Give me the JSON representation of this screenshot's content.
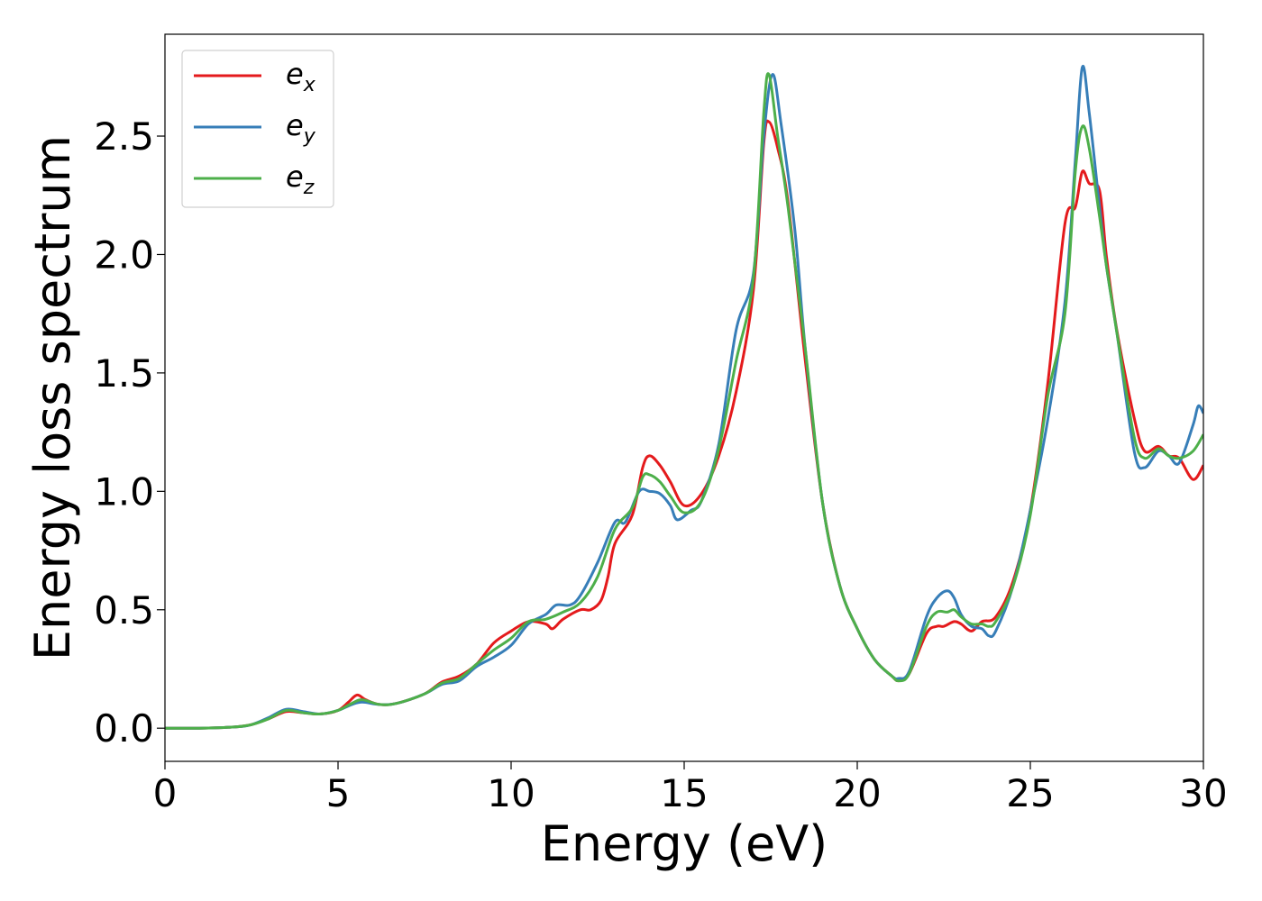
{
  "chart_data": {
    "type": "line",
    "title": "",
    "xlabel": "Energy (eV)",
    "ylabel": "Energy loss spectrum",
    "xlim": [
      0,
      30
    ],
    "ylim": [
      -0.14,
      2.93
    ],
    "xticks": [
      0,
      5,
      10,
      15,
      20,
      25,
      30
    ],
    "xtick_labels": [
      "0",
      "5",
      "10",
      "15",
      "20",
      "25",
      "30"
    ],
    "yticks": [
      0.0,
      0.5,
      1.0,
      1.5,
      2.0,
      2.5
    ],
    "ytick_labels": [
      "0.0",
      "0.5",
      "1.0",
      "1.5",
      "2.0",
      "2.5"
    ],
    "grid": false,
    "legend_position": "top-left",
    "series": [
      {
        "name": "e",
        "subscript": "x",
        "color": "#e41a1c",
        "points": [
          [
            0,
            0
          ],
          [
            1,
            0
          ],
          [
            2,
            0.005
          ],
          [
            2.5,
            0.015
          ],
          [
            3,
            0.04
          ],
          [
            3.5,
            0.07
          ],
          [
            4,
            0.065
          ],
          [
            4.5,
            0.06
          ],
          [
            5,
            0.075
          ],
          [
            5.3,
            0.11
          ],
          [
            5.55,
            0.14
          ],
          [
            5.8,
            0.12
          ],
          [
            6.2,
            0.1
          ],
          [
            6.7,
            0.105
          ],
          [
            7.5,
            0.145
          ],
          [
            8,
            0.195
          ],
          [
            8.5,
            0.22
          ],
          [
            9,
            0.27
          ],
          [
            9.5,
            0.36
          ],
          [
            10,
            0.41
          ],
          [
            10.5,
            0.45
          ],
          [
            11,
            0.44
          ],
          [
            11.2,
            0.42
          ],
          [
            11.5,
            0.46
          ],
          [
            12,
            0.5
          ],
          [
            12.3,
            0.5
          ],
          [
            12.6,
            0.54
          ],
          [
            12.8,
            0.64
          ],
          [
            13,
            0.78
          ],
          [
            13.5,
            0.9
          ],
          [
            13.8,
            1.1
          ],
          [
            14,
            1.15
          ],
          [
            14.3,
            1.11
          ],
          [
            14.6,
            1.04
          ],
          [
            15,
            0.94
          ],
          [
            15.5,
            0.99
          ],
          [
            16,
            1.15
          ],
          [
            16.5,
            1.42
          ],
          [
            17,
            1.85
          ],
          [
            17.3,
            2.47
          ],
          [
            17.45,
            2.56
          ],
          [
            17.7,
            2.45
          ],
          [
            18,
            2.22
          ],
          [
            18.5,
            1.55
          ],
          [
            19,
            0.95
          ],
          [
            19.5,
            0.6
          ],
          [
            20,
            0.42
          ],
          [
            20.5,
            0.29
          ],
          [
            21,
            0.22
          ],
          [
            21.2,
            0.2
          ],
          [
            21.5,
            0.23
          ],
          [
            22,
            0.4
          ],
          [
            22.3,
            0.43
          ],
          [
            22.5,
            0.43
          ],
          [
            22.8,
            0.45
          ],
          [
            23,
            0.44
          ],
          [
            23.3,
            0.41
          ],
          [
            23.6,
            0.45
          ],
          [
            24,
            0.47
          ],
          [
            24.5,
            0.62
          ],
          [
            25,
            0.92
          ],
          [
            25.5,
            1.45
          ],
          [
            26,
            2.13
          ],
          [
            26.3,
            2.2
          ],
          [
            26.5,
            2.35
          ],
          [
            26.7,
            2.3
          ],
          [
            27,
            2.27
          ],
          [
            27.2,
            1.99
          ],
          [
            27.5,
            1.68
          ],
          [
            28,
            1.31
          ],
          [
            28.3,
            1.17
          ],
          [
            28.7,
            1.19
          ],
          [
            29,
            1.15
          ],
          [
            29.3,
            1.14
          ],
          [
            29.7,
            1.05
          ],
          [
            30,
            1.11
          ]
        ]
      },
      {
        "name": "e",
        "subscript": "y",
        "color": "#377eb8",
        "points": [
          [
            0,
            0
          ],
          [
            1,
            0
          ],
          [
            2,
            0.005
          ],
          [
            2.5,
            0.015
          ],
          [
            3,
            0.045
          ],
          [
            3.5,
            0.08
          ],
          [
            4,
            0.07
          ],
          [
            4.5,
            0.06
          ],
          [
            5,
            0.075
          ],
          [
            5.4,
            0.1
          ],
          [
            5.7,
            0.11
          ],
          [
            6.2,
            0.1
          ],
          [
            6.7,
            0.105
          ],
          [
            7.5,
            0.145
          ],
          [
            8,
            0.185
          ],
          [
            8.5,
            0.2
          ],
          [
            9,
            0.26
          ],
          [
            9.5,
            0.3
          ],
          [
            10,
            0.35
          ],
          [
            10.5,
            0.44
          ],
          [
            11,
            0.48
          ],
          [
            11.3,
            0.52
          ],
          [
            11.7,
            0.52
          ],
          [
            12,
            0.56
          ],
          [
            12.5,
            0.7
          ],
          [
            13,
            0.87
          ],
          [
            13.3,
            0.87
          ],
          [
            13.7,
            1.0
          ],
          [
            14,
            1.0
          ],
          [
            14.3,
            0.99
          ],
          [
            14.6,
            0.94
          ],
          [
            14.8,
            0.88
          ],
          [
            15.2,
            0.92
          ],
          [
            15.5,
            0.96
          ],
          [
            16,
            1.2
          ],
          [
            16.5,
            1.68
          ],
          [
            17,
            1.92
          ],
          [
            17.3,
            2.5
          ],
          [
            17.55,
            2.76
          ],
          [
            17.8,
            2.55
          ],
          [
            18.2,
            2.1
          ],
          [
            18.5,
            1.6
          ],
          [
            19,
            0.95
          ],
          [
            19.5,
            0.6
          ],
          [
            20,
            0.42
          ],
          [
            20.5,
            0.29
          ],
          [
            21,
            0.22
          ],
          [
            21.2,
            0.21
          ],
          [
            21.5,
            0.24
          ],
          [
            22,
            0.47
          ],
          [
            22.3,
            0.55
          ],
          [
            22.6,
            0.58
          ],
          [
            22.8,
            0.55
          ],
          [
            23,
            0.48
          ],
          [
            23.3,
            0.43
          ],
          [
            23.6,
            0.42
          ],
          [
            23.8,
            0.39
          ],
          [
            24,
            0.41
          ],
          [
            24.5,
            0.6
          ],
          [
            25,
            0.92
          ],
          [
            25.5,
            1.3
          ],
          [
            26,
            1.8
          ],
          [
            26.3,
            2.4
          ],
          [
            26.5,
            2.79
          ],
          [
            26.7,
            2.6
          ],
          [
            27,
            2.2
          ],
          [
            27.2,
            1.95
          ],
          [
            27.5,
            1.67
          ],
          [
            28,
            1.17
          ],
          [
            28.3,
            1.1
          ],
          [
            28.7,
            1.17
          ],
          [
            29,
            1.15
          ],
          [
            29.3,
            1.12
          ],
          [
            29.7,
            1.28
          ],
          [
            29.85,
            1.36
          ],
          [
            30,
            1.33
          ]
        ]
      },
      {
        "name": "e",
        "subscript": "z",
        "color": "#4daf4a",
        "points": [
          [
            0,
            0
          ],
          [
            1,
            0
          ],
          [
            2,
            0.005
          ],
          [
            2.5,
            0.015
          ],
          [
            3,
            0.04
          ],
          [
            3.5,
            0.075
          ],
          [
            4,
            0.065
          ],
          [
            4.5,
            0.06
          ],
          [
            5,
            0.075
          ],
          [
            5.4,
            0.105
          ],
          [
            5.7,
            0.12
          ],
          [
            6.2,
            0.1
          ],
          [
            6.7,
            0.105
          ],
          [
            7.5,
            0.145
          ],
          [
            8,
            0.19
          ],
          [
            8.5,
            0.21
          ],
          [
            9,
            0.27
          ],
          [
            9.5,
            0.33
          ],
          [
            10,
            0.38
          ],
          [
            10.5,
            0.45
          ],
          [
            11,
            0.46
          ],
          [
            11.5,
            0.49
          ],
          [
            12,
            0.53
          ],
          [
            12.5,
            0.64
          ],
          [
            13,
            0.84
          ],
          [
            13.5,
            0.93
          ],
          [
            13.8,
            1.06
          ],
          [
            14,
            1.07
          ],
          [
            14.3,
            1.04
          ],
          [
            14.6,
            0.98
          ],
          [
            15,
            0.91
          ],
          [
            15.5,
            0.96
          ],
          [
            16,
            1.18
          ],
          [
            16.5,
            1.55
          ],
          [
            17,
            1.9
          ],
          [
            17.3,
            2.6
          ],
          [
            17.45,
            2.76
          ],
          [
            17.7,
            2.5
          ],
          [
            18,
            2.2
          ],
          [
            18.5,
            1.6
          ],
          [
            19,
            0.95
          ],
          [
            19.5,
            0.6
          ],
          [
            20,
            0.42
          ],
          [
            20.5,
            0.29
          ],
          [
            21,
            0.22
          ],
          [
            21.2,
            0.2
          ],
          [
            21.5,
            0.23
          ],
          [
            22,
            0.43
          ],
          [
            22.3,
            0.49
          ],
          [
            22.6,
            0.49
          ],
          [
            22.8,
            0.5
          ],
          [
            23,
            0.47
          ],
          [
            23.3,
            0.44
          ],
          [
            23.6,
            0.44
          ],
          [
            23.8,
            0.43
          ],
          [
            24,
            0.45
          ],
          [
            24.5,
            0.6
          ],
          [
            25,
            0.9
          ],
          [
            25.5,
            1.4
          ],
          [
            26,
            1.75
          ],
          [
            26.3,
            2.35
          ],
          [
            26.5,
            2.54
          ],
          [
            26.7,
            2.45
          ],
          [
            27,
            2.16
          ],
          [
            27.2,
            1.95
          ],
          [
            27.5,
            1.67
          ],
          [
            28,
            1.23
          ],
          [
            28.3,
            1.14
          ],
          [
            28.7,
            1.18
          ],
          [
            29,
            1.15
          ],
          [
            29.3,
            1.14
          ],
          [
            29.7,
            1.17
          ],
          [
            30,
            1.24
          ]
        ]
      }
    ]
  }
}
